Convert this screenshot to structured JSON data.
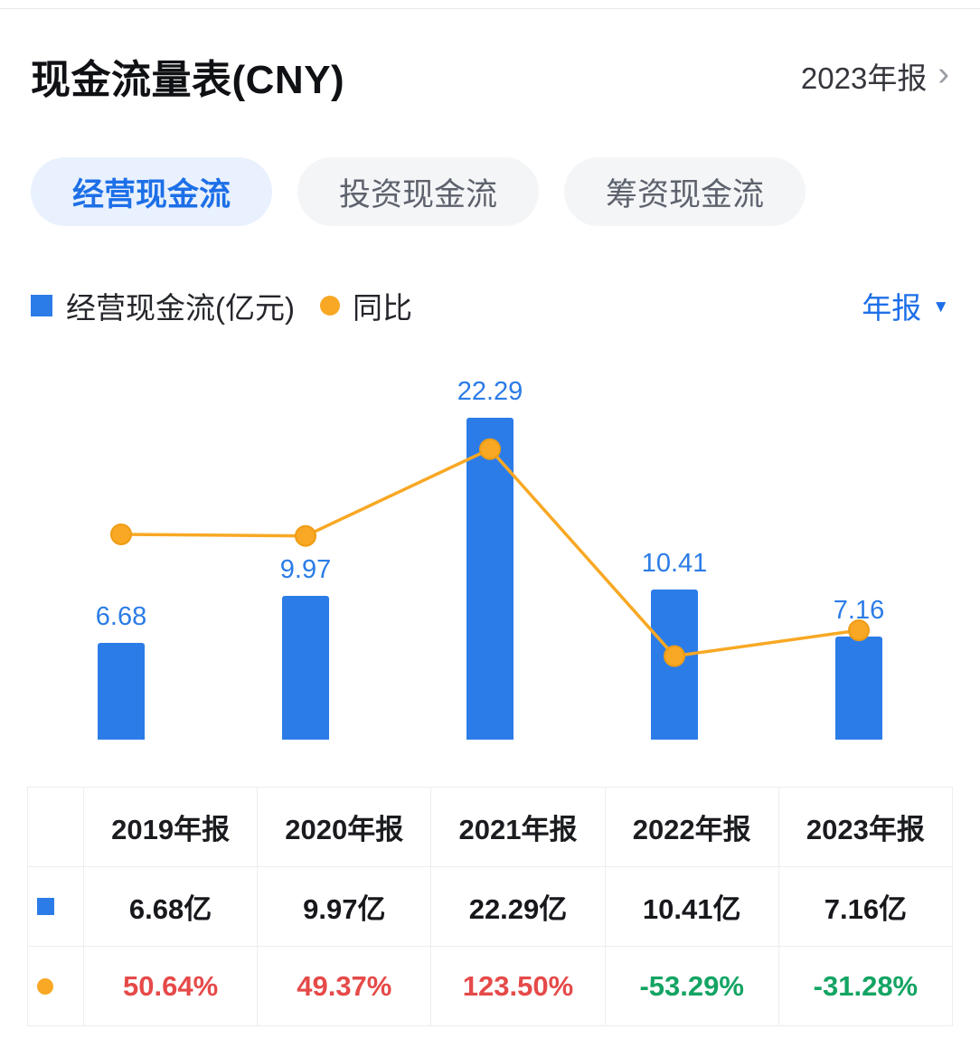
{
  "header": {
    "title": "现金流量表(CNY)",
    "period_selector": "2023年报"
  },
  "icons": {
    "chevron_right": "›",
    "caret_down": "▼"
  },
  "tabs": [
    {
      "label": "经营现金流",
      "active": true
    },
    {
      "label": "投资现金流",
      "active": false
    },
    {
      "label": "筹资现金流",
      "active": false
    }
  ],
  "legend": {
    "bar_label": "经营现金流(亿元)",
    "line_label": "同比",
    "period_filter": "年报"
  },
  "colors": {
    "bar": "#2c7ce8",
    "bar_label": "#2b7ce6",
    "line": "#f8a824",
    "line_edge": "#ef9c14",
    "accent": "#1d6fe8",
    "active_tab_bg": "#e8f1fd",
    "up_red": "#e54a49",
    "down_green": "#13a463"
  },
  "chart_data": {
    "type": "bar+line",
    "categories": [
      "2019年报",
      "2020年报",
      "2021年报",
      "2022年报",
      "2023年报"
    ],
    "series": [
      {
        "name": "经营现金流(亿元)",
        "type": "bar",
        "values": [
          6.68,
          9.97,
          22.29,
          10.41,
          7.16
        ]
      },
      {
        "name": "同比",
        "type": "line",
        "unit": "%",
        "values": [
          50.64,
          49.37,
          123.5,
          -53.29,
          -31.28
        ]
      }
    ],
    "bar_labels": [
      "6.68",
      "9.97",
      "22.29",
      "10.41",
      "7.16"
    ],
    "legend_position": "top-left",
    "grid": false,
    "axes_visible": false
  },
  "table": {
    "columns": [
      "2019年报",
      "2020年报",
      "2021年报",
      "2022年报",
      "2023年报"
    ],
    "rows": [
      {
        "series": "经营现金流",
        "values": [
          "6.68亿",
          "9.97亿",
          "22.29亿",
          "10.41亿",
          "7.16亿"
        ]
      },
      {
        "series": "同比",
        "values": [
          "50.64%",
          "49.37%",
          "123.50%",
          "-53.29%",
          "-31.28%"
        ],
        "value_colors": [
          "red",
          "red",
          "red",
          "green",
          "green"
        ]
      }
    ]
  }
}
